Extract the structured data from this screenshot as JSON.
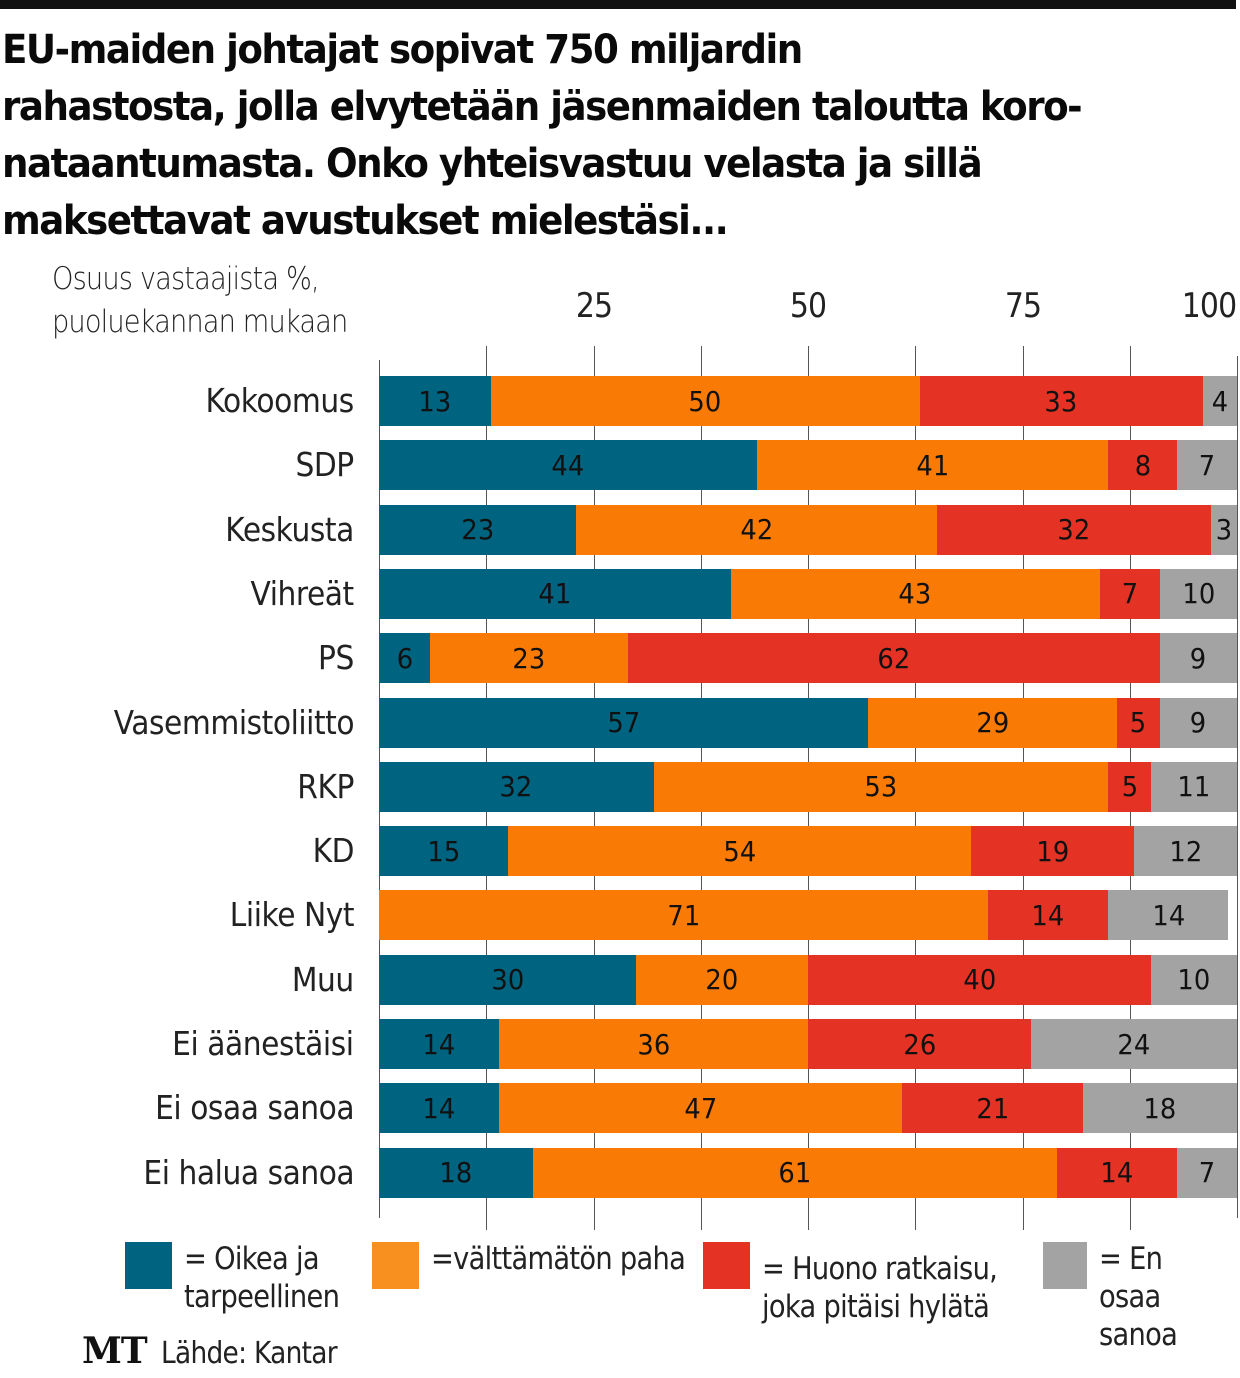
{
  "title": "EU-maiden johtajat sopivat 750 miljardin rahastosta, jolla elvytetään jäsenmaiden taloutta koro-nataantumasta. Onko yhteisvastuu velasta ja sillä maksettavat avustukset mielestäsi...",
  "title_lines": [
    "EU-maiden johtajat sopivat 750 miljardin",
    "rahastosta, jolla elvytetään jäsenmaiden taloutta koro-",
    "nataantumasta. Onko yhteisvastuu velasta ja sillä",
    "maksettavat avustukset mielestäsi..."
  ],
  "axis_caption_lines": [
    "Osuus vastaajista %,",
    "puoluekannan mukaan"
  ],
  "source": "Lähde: Kantar",
  "brand": "MT",
  "chart_data": {
    "type": "bar",
    "orientation": "horizontal",
    "stacked": true,
    "title": "EU-maiden johtajat sopivat 750 miljardin rahastosta, jolla elvytetään jäsenmaiden taloutta koronataantumasta. Onko yhteisvastuu velasta ja sillä maksettavat avustukset mielestäsi...",
    "xlabel": "Osuus vastaajista %, puoluekannan mukaan",
    "ylabel": "",
    "xlim": [
      0,
      100
    ],
    "xticks": [
      25,
      50,
      75,
      100
    ],
    "grid_step": 12.5,
    "grid": true,
    "legend_position": "bottom",
    "categories": [
      "Kokoomus",
      "SDP",
      "Keskusta",
      "Vihreät",
      "PS",
      "Vasemmistoliitto",
      "RKP",
      "KD",
      "Liike Nyt",
      "Muu",
      "Ei äänestäisi",
      "Ei osaa sanoa",
      "Ei halua sanoa"
    ],
    "series": [
      {
        "name": "= Oikea ja tarpeellinen",
        "color": "#00637f",
        "values": [
          13,
          44,
          23,
          41,
          6,
          57,
          32,
          15,
          0,
          30,
          14,
          14,
          18
        ]
      },
      {
        "name": "=välttämätön paha",
        "color": "#f97b06",
        "values": [
          50,
          41,
          42,
          43,
          23,
          29,
          53,
          54,
          71,
          20,
          36,
          47,
          61
        ]
      },
      {
        "name": "= Huono ratkaisu, joka pitäisi hylätä",
        "color": "#e43325",
        "values": [
          33,
          8,
          32,
          7,
          62,
          5,
          5,
          19,
          14,
          40,
          26,
          21,
          14
        ]
      },
      {
        "name": "= En osaa sanoa",
        "color": "#a3a3a3",
        "values": [
          4,
          7,
          3,
          10,
          9,
          9,
          11,
          12,
          14,
          10,
          24,
          18,
          7
        ]
      }
    ]
  },
  "legend": [
    {
      "label": "= Oikea ja\ntarpeellinen",
      "color": "#00637f"
    },
    {
      "label": "=välttämätön paha",
      "color": "#f7901e"
    },
    {
      "label": "= Huono ratkaisu,\njoka pitäisi hylätä",
      "color": "#e43325"
    },
    {
      "label": "= En osaa\nsanoa",
      "color": "#a3a3a3"
    }
  ]
}
